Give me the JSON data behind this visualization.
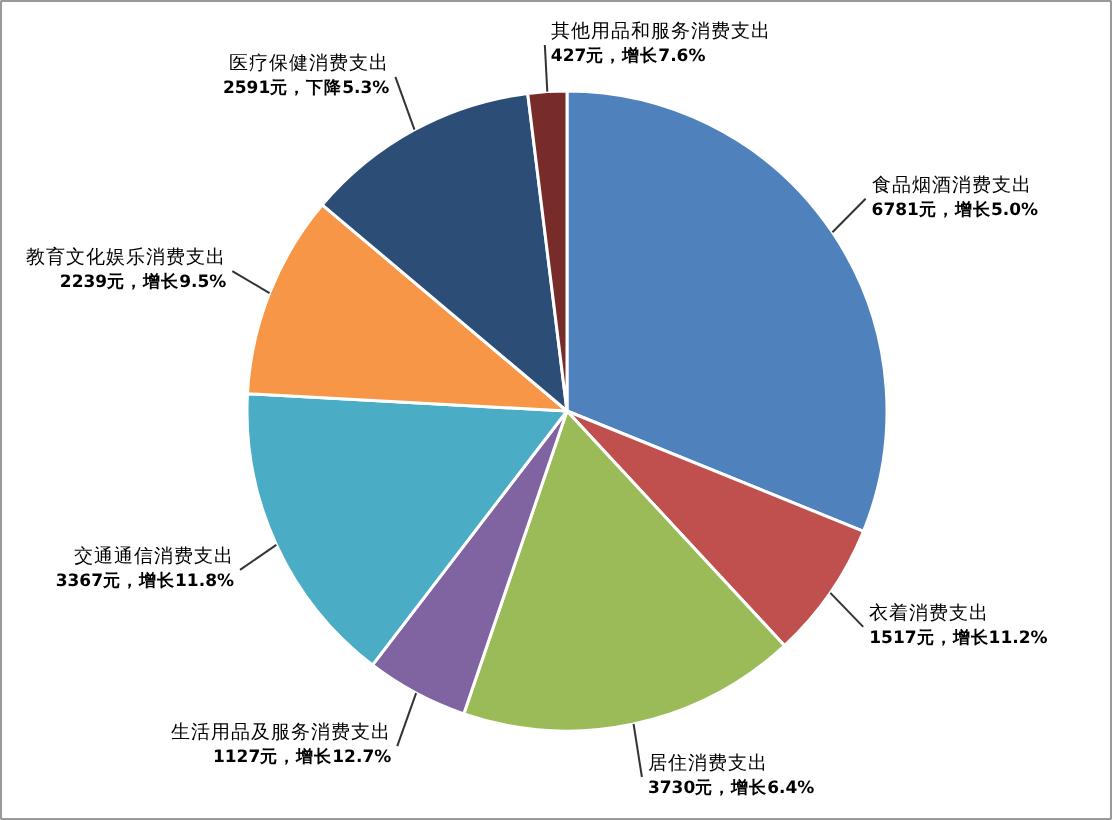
{
  "chart_data": {
    "type": "pie",
    "categories": [
      "食品烟酒消费支出",
      "衣着消费支出",
      "居住消费支出",
      "生活用品及服务消费支出",
      "交通通信消费支出",
      "教育文化娱乐消费支出",
      "医疗保健消费支出",
      "其他用品和服务消费支出"
    ],
    "values": [
      6781,
      1517,
      3730,
      1127,
      3367,
      2239,
      2591,
      427
    ],
    "colors": [
      "#4f81bd",
      "#c0504d",
      "#9bbb59",
      "#8064a2",
      "#4bacc6",
      "#f79646",
      "#2c4d75",
      "#772c2a"
    ],
    "value_labels": [
      "6781元，增长5.0%",
      "1517元，增长11.2%",
      "3730元，增长6.4%",
      "1127元，增长12.7%",
      "3367元，增长11.8%",
      "2239元，增长9.5%",
      "2591元，下降5.3%",
      "427元，增长7.6%"
    ]
  }
}
